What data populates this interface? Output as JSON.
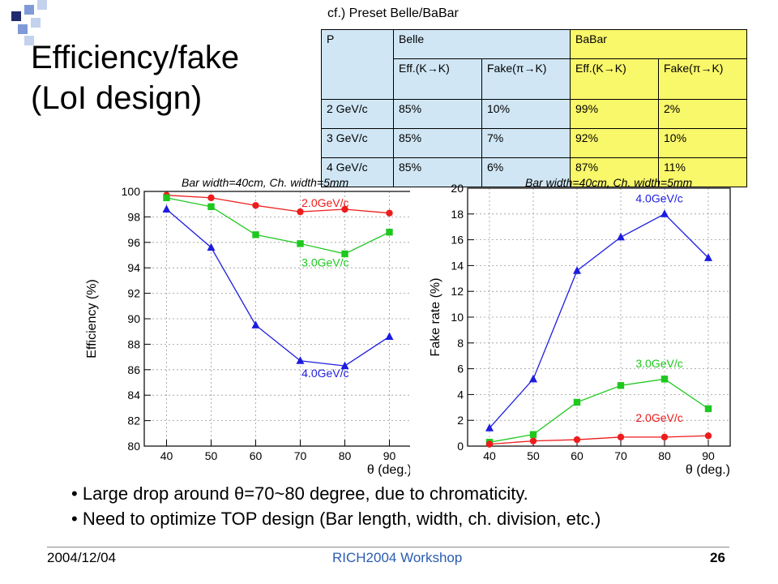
{
  "slide": {
    "title_line1": "Efficiency/fake",
    "title_line2": "(LoI design)",
    "table_caption": "cf.) Preset Belle/BaBar",
    "footer_date": "2004/12/04",
    "footer_conference": "RICH2004 Workshop",
    "footer_page": "26",
    "bullets": [
      "Large drop around θ=70~80 degree, due to chromaticity.",
      "Need to optimize TOP design (Bar length, width, ch. division, etc.)"
    ]
  },
  "table": {
    "header": [
      "P",
      "Belle",
      "BaBar"
    ],
    "subheader": [
      "Eff.(K→K)",
      "Fake(π→K)",
      "Eff.(K→K)",
      "Fake(π→K)"
    ],
    "rows": [
      [
        "2 GeV/c",
        "85%",
        "10%",
        "99%",
        "2%"
      ],
      [
        "3 GeV/c",
        "85%",
        "7%",
        "92%",
        "10%"
      ],
      [
        "4 GeV/c",
        "85%",
        "6%",
        "87%",
        "11%"
      ]
    ]
  },
  "chart_data": [
    {
      "type": "line",
      "title": "Bar width=40cm, Ch. width=5mm",
      "xlabel": "θ (deg.)",
      "ylabel": "Efficiency (%)",
      "x": [
        40,
        50,
        60,
        70,
        80,
        90
      ],
      "xlim": [
        35,
        95
      ],
      "ylim": [
        80,
        100
      ],
      "xticks": [
        "40",
        "50",
        "60",
        "70",
        "80",
        "90"
      ],
      "yticks": [
        "80",
        "82",
        "84",
        "86",
        "88",
        "90",
        "92",
        "94",
        "96",
        "98",
        "100"
      ],
      "grid": true,
      "series": [
        {
          "name": "2.0GeV/c",
          "color": "#ee1c1c",
          "marker": "circle",
          "values": [
            99.7,
            99.5,
            98.9,
            98.4,
            98.6,
            98.3
          ]
        },
        {
          "name": "3.0GeV/c",
          "color": "#1ec81e",
          "marker": "square",
          "values": [
            99.5,
            98.8,
            96.6,
            95.9,
            95.1,
            96.8
          ]
        },
        {
          "name": "4.0GeV/c",
          "color": "#1c1ce0",
          "marker": "triangle",
          "values": [
            98.6,
            95.6,
            89.5,
            86.7,
            86.3,
            88.6
          ]
        }
      ]
    },
    {
      "type": "line",
      "title": "Bar width=40cm, Ch. width=5mm",
      "xlabel": "θ (deg.)",
      "ylabel": "Fake rate (%)",
      "x": [
        40,
        50,
        60,
        70,
        80,
        90
      ],
      "xlim": [
        35,
        95
      ],
      "ylim": [
        0,
        20
      ],
      "xticks": [
        "40",
        "50",
        "60",
        "70",
        "80",
        "90"
      ],
      "yticks": [
        "0",
        "2",
        "4",
        "6",
        "8",
        "10",
        "12",
        "14",
        "16",
        "18",
        "20"
      ],
      "grid": true,
      "series": [
        {
          "name": "4.0GeV/c",
          "color": "#1c1ce0",
          "marker": "triangle",
          "values": [
            1.4,
            5.2,
            13.6,
            16.2,
            18.0,
            14.6
          ]
        },
        {
          "name": "3.0GeV/c",
          "color": "#1ec81e",
          "marker": "square",
          "values": [
            0.3,
            0.9,
            3.4,
            4.7,
            5.2,
            2.9
          ]
        },
        {
          "name": "2.0GeV/c",
          "color": "#ee1c1c",
          "marker": "circle",
          "values": [
            0.15,
            0.4,
            0.5,
            0.7,
            0.7,
            0.8
          ]
        }
      ]
    }
  ]
}
